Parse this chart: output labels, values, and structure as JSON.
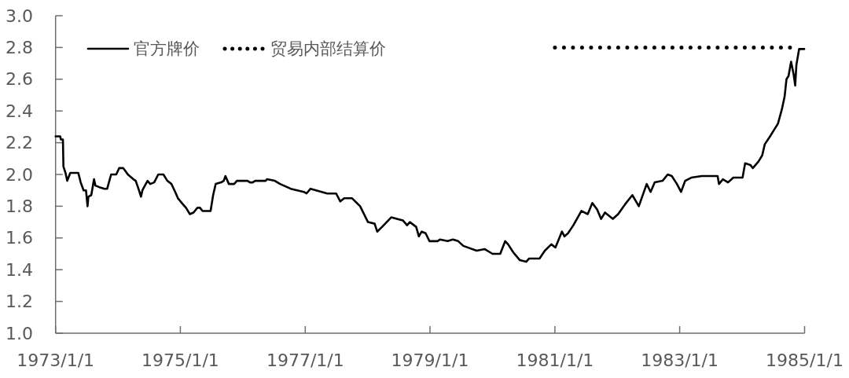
{
  "chart_data": {
    "type": "line",
    "x": [
      "1973-01-01",
      "1973-01-28",
      "1973-02-01",
      "1973-02-13",
      "1973-02-16",
      "1973-02-28",
      "1973-03-10",
      "1973-03-28",
      "1973-05-14",
      "1973-05-28",
      "1973-06-14",
      "1973-06-28",
      "1973-07-07",
      "1973-07-12",
      "1973-07-29",
      "1973-08-14",
      "1973-08-22",
      "1973-09-14",
      "1973-10-14",
      "1973-10-30",
      "1973-11-22",
      "1973-12-22",
      "1974-01-08",
      "1974-02-01",
      "1974-02-15",
      "1974-02-28",
      "1974-04-01",
      "1974-04-15",
      "1974-05-01",
      "1974-05-16",
      "1974-05-24",
      "1974-06-08",
      "1974-06-23",
      "1974-07-09",
      "1974-08-01",
      "1974-08-25",
      "1974-09-24",
      "1974-10-17",
      "1974-11-10",
      "1974-12-02",
      "1974-12-18",
      "1975-01-10",
      "1975-02-03",
      "1975-02-26",
      "1975-03-19",
      "1975-04-11",
      "1975-04-26",
      "1975-05-11",
      "1975-06-27",
      "1975-07-12",
      "1975-07-27",
      "1975-08-28",
      "1975-09-12",
      "1975-09-22",
      "1975-10-12",
      "1975-11-12",
      "1975-11-28",
      "1976-01-29",
      "1976-02-13",
      "1976-02-28",
      "1976-03-14",
      "1976-05-14",
      "1976-05-22",
      "1976-07-07",
      "1976-08-07",
      "1976-10-08",
      "1976-12-24",
      "1977-01-08",
      "1977-02-01",
      "1977-05-10",
      "1977-07-01",
      "1977-07-25",
      "1977-08-17",
      "1977-10-02",
      "1977-11-18",
      "1978-01-03",
      "1978-02-11",
      "1978-02-26",
      "1978-03-27",
      "1978-05-19",
      "1978-07-27",
      "1978-08-20",
      "1978-09-05",
      "1978-10-12",
      "1978-10-28",
      "1978-11-13",
      "1978-12-06",
      "1978-12-29",
      "1979-02-14",
      "1979-02-28",
      "1979-04-14",
      "1979-05-15",
      "1979-06-15",
      "1979-07-15",
      "1979-10-01",
      "1979-11-16",
      "1980-01-02",
      "1980-02-16",
      "1980-03-16",
      "1980-04-02",
      "1980-05-02",
      "1980-06-10",
      "1980-07-17",
      "1980-08-02",
      "1980-10-03",
      "1980-11-03",
      "1980-12-11",
      "1981-01-04",
      "1981-02-11",
      "1981-02-26",
      "1981-03-19",
      "1981-04-19",
      "1981-06-05",
      "1981-07-12",
      "1981-08-08",
      "1981-09-05",
      "1981-09-28",
      "1981-10-21",
      "1981-12-06",
      "1982-01-06",
      "1982-02-14",
      "1982-03-30",
      "1982-05-07",
      "1982-06-22",
      "1982-07-15",
      "1982-08-08",
      "1982-09-23",
      "1982-10-23",
      "1982-11-16",
      "1982-12-16",
      "1983-01-09",
      "1983-02-02",
      "1983-03-10",
      "1983-05-10",
      "1983-08-11",
      "1983-08-19",
      "1983-09-11",
      "1983-10-11",
      "1983-11-11",
      "1984-01-04",
      "1984-01-19",
      "1984-02-19",
      "1984-03-04",
      "1984-04-05",
      "1984-04-28",
      "1984-05-13",
      "1984-06-13",
      "1984-07-06",
      "1984-07-29",
      "1984-08-21",
      "1984-09-06",
      "1984-09-17",
      "1984-09-29",
      "1984-10-14",
      "1984-10-29",
      "1984-11-07",
      "1984-11-14",
      "1984-11-30",
      "1984-12-30"
    ],
    "series": [
      {
        "name": "官方牌价",
        "color": "#000000",
        "line_style": "solid",
        "values": [
          2.24,
          2.24,
          2.22,
          2.22,
          2.05,
          2.01,
          1.96,
          2.01,
          2.01,
          1.95,
          1.9,
          1.9,
          1.8,
          1.86,
          1.87,
          1.97,
          1.93,
          1.92,
          1.91,
          1.91,
          2.0,
          2.0,
          2.04,
          2.04,
          2.02,
          2.0,
          1.97,
          1.96,
          1.91,
          1.86,
          1.9,
          1.93,
          1.96,
          1.94,
          1.95,
          2.0,
          2.0,
          1.96,
          1.94,
          1.89,
          1.85,
          1.82,
          1.79,
          1.75,
          1.76,
          1.79,
          1.79,
          1.77,
          1.77,
          1.87,
          1.94,
          1.95,
          1.96,
          1.99,
          1.94,
          1.94,
          1.96,
          1.96,
          1.95,
          1.95,
          1.96,
          1.96,
          1.97,
          1.96,
          1.94,
          1.91,
          1.89,
          1.88,
          1.91,
          1.88,
          1.88,
          1.83,
          1.85,
          1.85,
          1.8,
          1.7,
          1.69,
          1.64,
          1.67,
          1.73,
          1.71,
          1.68,
          1.7,
          1.67,
          1.61,
          1.64,
          1.63,
          1.58,
          1.58,
          1.59,
          1.58,
          1.59,
          1.58,
          1.55,
          1.52,
          1.53,
          1.5,
          1.5,
          1.58,
          1.56,
          1.51,
          1.46,
          1.45,
          1.47,
          1.47,
          1.52,
          1.56,
          1.54,
          1.64,
          1.61,
          1.63,
          1.68,
          1.77,
          1.75,
          1.82,
          1.78,
          1.72,
          1.76,
          1.72,
          1.75,
          1.81,
          1.87,
          1.8,
          1.94,
          1.89,
          1.95,
          1.96,
          2.0,
          1.99,
          1.94,
          1.89,
          1.96,
          1.98,
          1.99,
          1.99,
          1.94,
          1.97,
          1.95,
          1.98,
          1.98,
          2.07,
          2.06,
          2.04,
          2.08,
          2.12,
          2.19,
          2.24,
          2.28,
          2.32,
          2.41,
          2.49,
          2.6,
          2.62,
          2.71,
          2.63,
          2.56,
          2.69,
          2.79,
          2.79
        ]
      },
      {
        "name": "贸易内部结算价",
        "color": "#000000",
        "line_style": "dotted",
        "x": [
          "1981-01-01",
          "1984-11-15"
        ],
        "values": [
          2.8,
          2.8
        ]
      }
    ],
    "xlim": [
      "1973-01-01",
      "1985-01-01"
    ],
    "xticks": [
      {
        "value": "1973-01-01",
        "label": "1973/1/1"
      },
      {
        "value": "1975-01-01",
        "label": "1975/1/1"
      },
      {
        "value": "1977-01-01",
        "label": "1977/1/1"
      },
      {
        "value": "1979-01-01",
        "label": "1979/1/1"
      },
      {
        "value": "1981-01-01",
        "label": "1981/1/1"
      },
      {
        "value": "1983-01-01",
        "label": "1983/1/1"
      },
      {
        "value": "1985-01-01",
        "label": "1985/1/1"
      }
    ],
    "ylim": [
      1,
      3
    ],
    "yticks": [
      {
        "value": 1,
        "label": "1.0"
      },
      1.2,
      1.4,
      1.6,
      1.8,
      {
        "value": 2,
        "label": "2.0"
      },
      2.2,
      2.4,
      2.6,
      2.8,
      {
        "value": 3,
        "label": "3.0"
      }
    ],
    "legend": "top left"
  }
}
